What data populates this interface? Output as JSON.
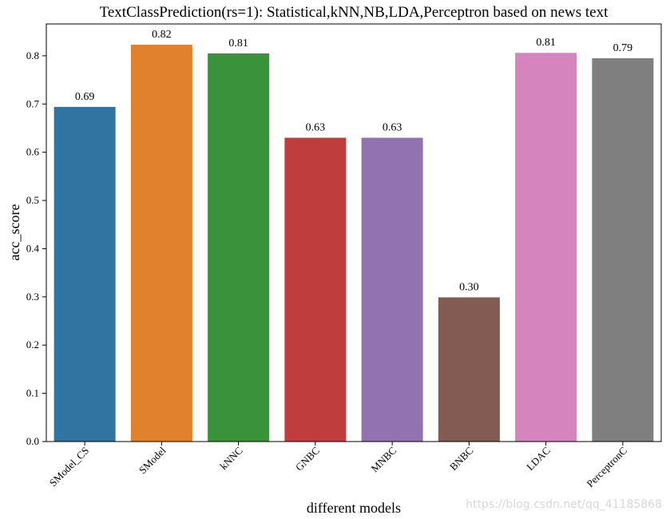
{
  "chart_data": {
    "type": "bar",
    "title": "TextClassPrediction(rs=1):  Statistical,kNN,NB,LDA,Perceptron based on news text",
    "xlabel": "different models",
    "ylabel": "acc_score",
    "categories": [
      "SModel_CS",
      "SModel",
      "kNNC",
      "GNBC",
      "MNBC",
      "BNBC",
      "LDAC",
      "PerceptronC"
    ],
    "values": [
      0.694,
      0.823,
      0.805,
      0.63,
      0.63,
      0.299,
      0.806,
      0.795
    ],
    "labels": [
      "0.69",
      "0.82",
      "0.81",
      "0.63",
      "0.63",
      "0.30",
      "0.81",
      "0.79"
    ],
    "colors": [
      "#3274a1",
      "#e1812c",
      "#3a923a",
      "#c03d3e",
      "#9372b2",
      "#845b53",
      "#d684bd",
      "#7f7f7f"
    ],
    "yticks": [
      "0.0",
      "0.1",
      "0.2",
      "0.3",
      "0.4",
      "0.5",
      "0.6",
      "0.7",
      "0.8"
    ],
    "ylim": [
      0,
      0.866
    ],
    "grid": false
  },
  "watermark": "https://blog.csdn.net/qq_41185868"
}
